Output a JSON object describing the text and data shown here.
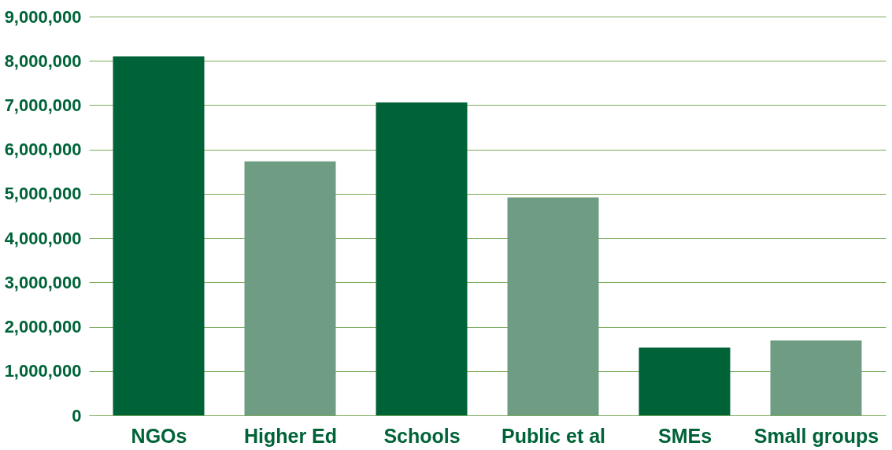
{
  "chart_data": {
    "type": "bar",
    "categories": [
      "NGOs",
      "Higher Ed",
      "Schools",
      "Public et al",
      "SMEs",
      "Small groups"
    ],
    "values": [
      8100000,
      5730000,
      7060000,
      4920000,
      1530000,
      1690000
    ],
    "colors": [
      "#006338",
      "#6f9d84",
      "#006338",
      "#6f9d84",
      "#006338",
      "#6f9d84"
    ],
    "ylim": [
      0,
      9000000
    ],
    "yticks": [
      {
        "value": 0,
        "label": "0"
      },
      {
        "value": 1000000,
        "label": "1,000,000"
      },
      {
        "value": 2000000,
        "label": "2,000,000"
      },
      {
        "value": 3000000,
        "label": "3,000,000"
      },
      {
        "value": 4000000,
        "label": "4,000,000"
      },
      {
        "value": 5000000,
        "label": "5,000,000"
      },
      {
        "value": 6000000,
        "label": "6,000,000"
      },
      {
        "value": 7000000,
        "label": "7,000,000"
      },
      {
        "value": 8000000,
        "label": "8,000,000"
      },
      {
        "value": 9000000,
        "label": "9,000,000"
      }
    ],
    "grid": "y"
  }
}
